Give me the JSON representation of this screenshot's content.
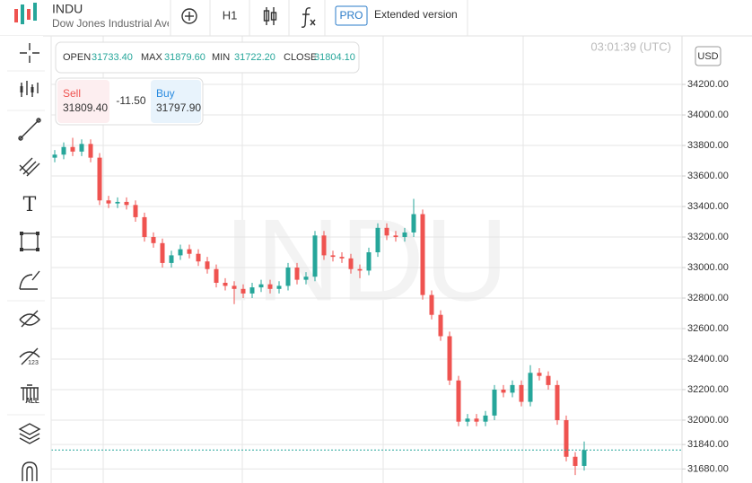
{
  "header": {
    "symbol": "INDU",
    "name": "Dow Jones Industrial Ave",
    "timeframe": "H1",
    "pro_badge": "PRO",
    "extended": "Extended version"
  },
  "toolbar": {
    "text_tool": "T",
    "badge_123": "123",
    "badge_all": "ALL"
  },
  "ohlc": {
    "open_label": "OPEN",
    "open": "31733.40",
    "max_label": "MAX",
    "max": "31879.60",
    "min_label": "MIN",
    "min": "31722.20",
    "close_label": "CLOSE",
    "close": "31804.10"
  },
  "trade": {
    "sell_label": "Sell",
    "sell": "31809.40",
    "spread": "-11.50",
    "buy_label": "Buy",
    "buy": "31797.90"
  },
  "clock": "03:01:39 (UTC)",
  "currency": "USD",
  "chart_data": {
    "type": "candlestick",
    "up_color": "#26a69a",
    "down_color": "#ef5350",
    "grid": true,
    "ylim": [
      31588,
      34518
    ],
    "yticks": [
      {
        "value": 34200,
        "label": "34200.00"
      },
      {
        "value": 34000,
        "label": "34000.00"
      },
      {
        "value": 33800,
        "label": "33800.00"
      },
      {
        "value": 33600,
        "label": "33600.00"
      },
      {
        "value": 33400,
        "label": "33400.00"
      },
      {
        "value": 33200,
        "label": "33200.00"
      },
      {
        "value": 33000,
        "label": "33000.00"
      },
      {
        "value": 32800,
        "label": "32800.00"
      },
      {
        "value": 32600,
        "label": "32600.00"
      },
      {
        "value": 32400,
        "label": "32400.00"
      },
      {
        "value": 32200,
        "label": "32200.00"
      },
      {
        "value": 32000,
        "label": "32000.00"
      },
      {
        "value": 31840,
        "label": "31840.00"
      },
      {
        "value": 31680,
        "label": "31680.00"
      }
    ],
    "open": [
      33720,
      33740,
      33790,
      33760,
      33810,
      33720,
      33440,
      33420,
      33430,
      33410,
      33330,
      33200,
      33160,
      33030,
      33080,
      33120,
      33090,
      33040,
      32990,
      32900,
      32880,
      32860,
      32830,
      32870,
      32890,
      32860,
      32880,
      33000,
      32920,
      32940,
      33210,
      33080,
      33070,
      33060,
      32990,
      32980,
      33100,
      33260,
      33210,
      33200,
      33230,
      33350,
      32820,
      32690,
      32550,
      32260,
      31990,
      32010,
      31990,
      32030,
      32200,
      32180,
      32230,
      32120,
      32310,
      32290,
      32230,
      32000,
      31760,
      31700
    ],
    "high": [
      33770,
      33820,
      33850,
      33840,
      33840,
      33750,
      33470,
      33460,
      33460,
      33440,
      33360,
      33230,
      33190,
      33110,
      33150,
      33150,
      33120,
      33070,
      33020,
      32930,
      32910,
      32890,
      32900,
      32920,
      32920,
      32910,
      33030,
      33030,
      32970,
      33240,
      33240,
      33110,
      33100,
      33090,
      33020,
      33130,
      33290,
      33290,
      33240,
      33260,
      33450,
      33380,
      32850,
      32720,
      32580,
      32290,
      32040,
      32040,
      32060,
      32230,
      32230,
      32260,
      32260,
      32360,
      32340,
      32320,
      32260,
      32030,
      31790,
      31860
    ],
    "low": [
      33690,
      33710,
      33730,
      33730,
      33690,
      33410,
      33390,
      33390,
      33380,
      33300,
      33170,
      33130,
      33000,
      33000,
      33050,
      33060,
      33010,
      32960,
      32870,
      32850,
      32760,
      32800,
      32800,
      32840,
      32830,
      32830,
      32850,
      32890,
      32890,
      32910,
      33050,
      33040,
      33030,
      32960,
      32930,
      32950,
      33070,
      33180,
      33170,
      33170,
      33200,
      32790,
      32660,
      32520,
      32230,
      31960,
      31960,
      31960,
      31960,
      32000,
      32150,
      32150,
      32090,
      32090,
      32260,
      32200,
      31970,
      31730,
      31640,
      31670
    ],
    "close": [
      33740,
      33790,
      33760,
      33810,
      33720,
      33440,
      33420,
      33430,
      33410,
      33330,
      33200,
      33160,
      33030,
      33080,
      33120,
      33090,
      33040,
      32990,
      32900,
      32880,
      32860,
      32830,
      32870,
      32890,
      32860,
      32880,
      33000,
      32920,
      32940,
      33210,
      33080,
      33070,
      33060,
      32990,
      32980,
      33100,
      33260,
      33210,
      33200,
      33230,
      33350,
      32820,
      32690,
      32550,
      32260,
      31990,
      32010,
      31990,
      32030,
      32200,
      32180,
      32230,
      32120,
      32310,
      32290,
      32230,
      32000,
      31760,
      31700,
      31804
    ]
  }
}
